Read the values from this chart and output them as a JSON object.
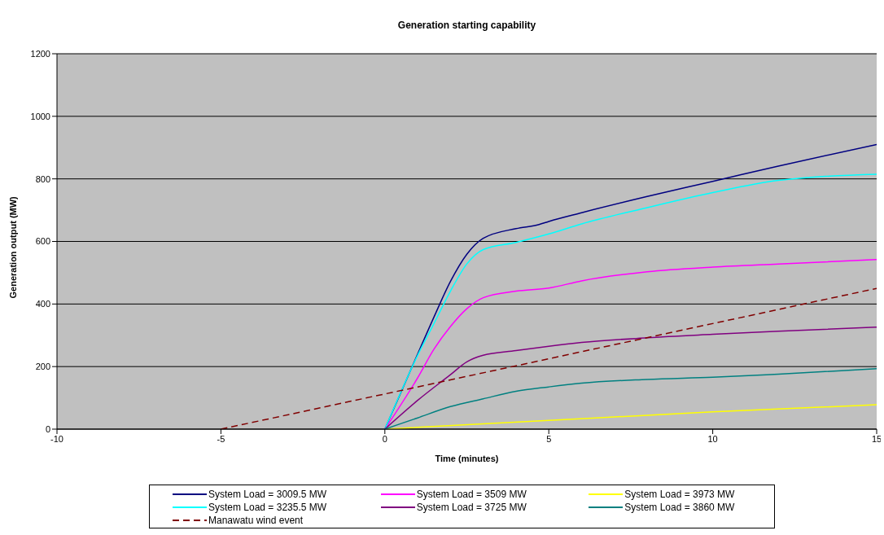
{
  "chart_data": {
    "type": "line",
    "title": "Generation starting capability",
    "xlabel": "Time (minutes)",
    "ylabel": "Generation output (MW)",
    "xlim": [
      -10,
      15
    ],
    "xticks": [
      -10,
      -5,
      0,
      5,
      10,
      15
    ],
    "ylim": [
      0,
      1200
    ],
    "yticks": [
      0,
      200,
      400,
      600,
      800,
      1000,
      1200
    ],
    "grid": "y",
    "legend": "bottom",
    "marker": "none",
    "line_style": "solid",
    "series": [
      {
        "name": "System Load = 3009.5 MW",
        "color": "#000080",
        "x": [
          0,
          1,
          1.5,
          2,
          2.5,
          3,
          4,
          4.7,
          5,
          6,
          8,
          10,
          12,
          15
        ],
        "values": [
          0,
          240,
          359,
          472,
          559,
          610,
          641,
          654,
          664,
          692,
          744,
          792,
          841,
          910
        ]
      },
      {
        "name": "System Load = 3509 MW",
        "color": "#ff00ff",
        "x": [
          0,
          1,
          1.5,
          2,
          2.5,
          3,
          4,
          5,
          6,
          8,
          10,
          12,
          15
        ],
        "values": [
          0,
          164,
          256,
          328,
          385,
          420,
          441,
          451,
          474,
          503,
          518,
          528,
          542
        ]
      },
      {
        "name": "System Load = 3973 MW",
        "color": "#ffff00",
        "x": [
          0,
          5,
          10,
          15
        ],
        "values": [
          0,
          28,
          55,
          78
        ]
      },
      {
        "name": "System Load = 3235.5 MW",
        "color": "#00ffff",
        "x": [
          0,
          1,
          1.5,
          2,
          2.5,
          3,
          4,
          5,
          6,
          8,
          10,
          12,
          13,
          15
        ],
        "values": [
          0,
          236,
          338,
          441,
          528,
          574,
          597,
          624,
          656,
          708,
          756,
          795,
          805,
          815
        ]
      },
      {
        "name": "System Load = 3725 MW",
        "color": "#800080",
        "x": [
          0,
          1,
          2,
          2.5,
          3,
          4,
          5,
          6,
          8,
          10,
          12,
          15
        ],
        "values": [
          0,
          92,
          174,
          215,
          236,
          251,
          265,
          277,
          292,
          303,
          313,
          326
        ]
      },
      {
        "name": "System Load = 3860 MW",
        "color": "#008080",
        "x": [
          0,
          1,
          2,
          3,
          4,
          5,
          6,
          8,
          10,
          12,
          15
        ],
        "values": [
          0,
          36,
          72,
          97,
          121,
          135,
          147,
          159,
          166,
          176,
          193
        ]
      },
      {
        "name": "Manawatu wind event",
        "color": "#800000",
        "line_style": "dashed",
        "x": [
          -5,
          15
        ],
        "values": [
          0,
          450
        ]
      }
    ]
  }
}
